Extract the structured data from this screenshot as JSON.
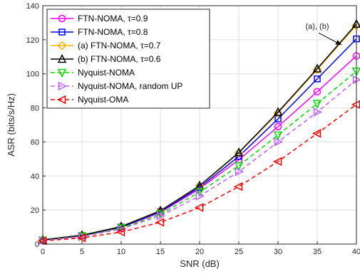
{
  "chart_data": {
    "type": "line",
    "xlabel": "SNR (dB)",
    "ylabel": "ASR (bits/s/Hz)",
    "xlim": [
      0,
      40
    ],
    "ylim": [
      0,
      140
    ],
    "x_ticks": [
      "0",
      "5",
      "10",
      "15",
      "20",
      "25",
      "30",
      "35",
      "40"
    ],
    "y_ticks": [
      "0",
      "20",
      "40",
      "60",
      "80",
      "100",
      "120",
      "140"
    ],
    "grid": "on",
    "legend_placement": "top-left",
    "x": [
      0,
      5,
      10,
      15,
      20,
      25,
      30,
      35,
      40
    ],
    "series": [
      {
        "name": "FTN-NOMA, τ=0.9",
        "values": [
          2.3,
          4.8,
          9.7,
          18.6,
          32.5,
          49.5,
          69,
          89.5,
          110.5
        ],
        "color": "#ff00ff",
        "marker": "circle",
        "dash": "solid"
      },
      {
        "name": "FTN-NOMA, τ=0.8",
        "values": [
          2.4,
          5,
          10,
          19,
          33.3,
          51.5,
          73.5,
          97,
          120.5
        ],
        "color": "#0000ff",
        "marker": "square",
        "dash": "solid"
      },
      {
        "name": "(a) FTN-NOMA, τ=0.7",
        "values": [
          2.5,
          5.2,
          10.3,
          19.5,
          34.2,
          53.5,
          77,
          102.5,
          128.5
        ],
        "color": "#f5b400",
        "marker": "diamond",
        "dash": "solid"
      },
      {
        "name": "(b) FTN-NOMA, τ=0.6",
        "values": [
          2.5,
          5.2,
          10.3,
          19.6,
          34.3,
          53.8,
          77.5,
          103,
          129.3
        ],
        "color": "#000000",
        "marker": "triangle-up",
        "dash": "solid"
      },
      {
        "name": "Nyquist-NOMA",
        "values": [
          2.2,
          4.6,
          9.4,
          17.6,
          30.5,
          46,
          64,
          82.5,
          101.5
        ],
        "color": "#00dd00",
        "marker": "triangle-down",
        "dash": "dashed"
      },
      {
        "name": "Nyquist-NOMA, random UP",
        "values": [
          2.1,
          4.3,
          8.9,
          16.6,
          28.2,
          42.5,
          60,
          77.5,
          96.5
        ],
        "color": "#bf5fff",
        "marker": "triangle-right",
        "dash": "dashed"
      },
      {
        "name": "Nyquist-OMA",
        "values": [
          1.9,
          3.6,
          7.1,
          12.8,
          21.5,
          33.8,
          48.5,
          65,
          82
        ],
        "color": "#ff0000",
        "marker": "triangle-left",
        "dash": "dashed"
      }
    ],
    "annotations": [
      {
        "text": "(a), (b)",
        "x": 35,
        "y": 126.5,
        "arrow_to_x": 38.1,
        "arrow_to_y": 117
      }
    ]
  }
}
